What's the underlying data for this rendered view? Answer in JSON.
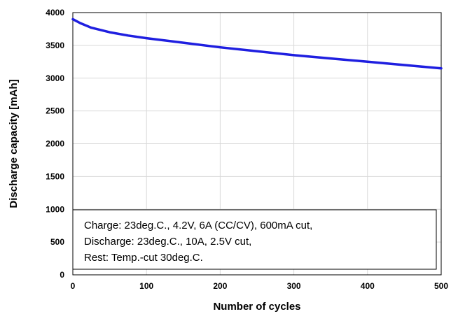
{
  "chart_data": {
    "type": "line",
    "xlabel": "Number of cycles",
    "ylabel": "Discharge capacity [mAh]",
    "xlim": [
      0,
      500
    ],
    "ylim": [
      0,
      4000
    ],
    "x_ticks": [
      "0",
      "100",
      "200",
      "300",
      "400",
      "500"
    ],
    "y_ticks": [
      "0",
      "500",
      "1000",
      "1500",
      "2000",
      "2500",
      "3000",
      "3500",
      "4000"
    ],
    "grid": "horizontal-and-vertical",
    "series": [
      {
        "color": "#1f1fe0",
        "x": [
          0,
          10,
          25,
          50,
          75,
          100,
          150,
          200,
          250,
          300,
          350,
          400,
          450,
          500
        ],
        "y": [
          3900,
          3840,
          3770,
          3700,
          3650,
          3610,
          3540,
          3470,
          3410,
          3350,
          3300,
          3250,
          3200,
          3150
        ]
      }
    ],
    "annotation": {
      "lines": [
        "Charge: 23deg.C., 4.2V, 6A  (CC/CV), 600mA cut,",
        "Discharge: 23deg.C., 10A, 2.5V cut,",
        "Rest: Temp.-cut 30deg.C."
      ]
    }
  }
}
